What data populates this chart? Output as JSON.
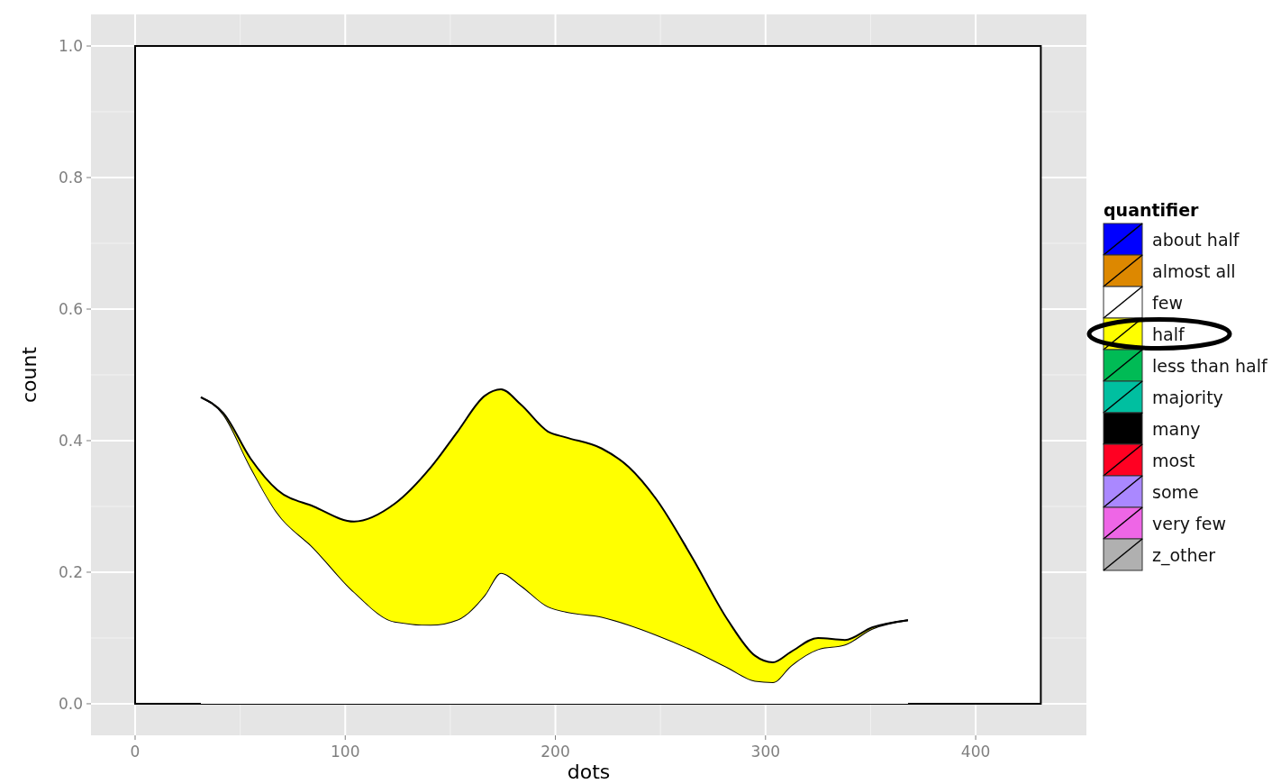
{
  "chart_data": {
    "type": "area",
    "stacked": true,
    "xlabel": "dots",
    "ylabel": "count",
    "legend_title": "quantifier",
    "legend": "right",
    "grid": true,
    "xlim": [
      -21,
      452.7
    ],
    "ylim": [
      -0.048,
      1.048
    ],
    "xticks": [
      0,
      100,
      200,
      300,
      400
    ],
    "yticks": [
      {
        "value": 0,
        "label": "0.0"
      },
      {
        "value": 0.2,
        "label": "0.2"
      },
      {
        "value": 0.4,
        "label": "0.4"
      },
      {
        "value": 0.6,
        "label": "0.6"
      },
      {
        "value": 0.8,
        "label": "0.8"
      },
      {
        "value": 1,
        "label": "1.0"
      }
    ],
    "bands": [
      {
        "axis": "x",
        "from": 0,
        "to": 431,
        "color": "#ffffff"
      }
    ],
    "x": [
      31.3,
      42.0,
      54.9,
      67.7,
      84.9,
      104.2,
      123.5,
      140.6,
      153.5,
      166.3,
      174.1,
      183.5,
      196.4,
      205,
      222.1,
      234.9,
      247.8,
      265,
      282.1,
      295,
      303.5,
      312.1,
      325,
      337.8,
      350.7,
      367.8
    ],
    "series": [
      {
        "name": "about half",
        "color": "#0000ff",
        "values": [
          null,
          null,
          null,
          null,
          null,
          null,
          null,
          null,
          null,
          null,
          null,
          null,
          null,
          null,
          null,
          null,
          null,
          null,
          null,
          null,
          null,
          null,
          null,
          null,
          null,
          null
        ]
      },
      {
        "name": "almost all",
        "color": "#dd8800",
        "values": [
          null,
          null,
          null,
          null,
          null,
          null,
          null,
          null,
          null,
          null,
          null,
          null,
          null,
          null,
          null,
          null,
          null,
          null,
          null,
          null,
          null,
          null,
          null,
          null,
          null,
          null
        ]
      },
      {
        "name": "few",
        "color": "#ffffff",
        "values": [
          0.466,
          0.44,
          0.36,
          0.29,
          0.237,
          0.17,
          0.125,
          0.12,
          0.128,
          0.165,
          0.199,
          0.18,
          0.148,
          0.14,
          0.132,
          0.12,
          0.105,
          0.082,
          0.055,
          0.035,
          0.033,
          0.058,
          0.083,
          0.09,
          0.114,
          0.127
        ]
      },
      {
        "name": "half",
        "color": "#ffff00",
        "values": [
          0,
          0.002,
          0.013,
          0.035,
          0.063,
          0.107,
          0.179,
          0.239,
          0.286,
          0.303,
          0.279,
          0.275,
          0.266,
          0.265,
          0.256,
          0.24,
          0.207,
          0.141,
          0.072,
          0.038,
          0.03,
          0.021,
          0.017,
          0.007,
          0.002,
          0
        ]
      },
      {
        "name": "less than half",
        "color": "#00bb55",
        "values": [
          null,
          null,
          null,
          null,
          null,
          null,
          null,
          null,
          null,
          null,
          null,
          null,
          null,
          null,
          null,
          null,
          null,
          null,
          null,
          null,
          null,
          null,
          null,
          null,
          null,
          null
        ]
      },
      {
        "name": "majority",
        "color": "#00bfa0",
        "values": [
          null,
          null,
          null,
          null,
          null,
          null,
          null,
          null,
          null,
          null,
          null,
          null,
          null,
          null,
          null,
          null,
          null,
          null,
          null,
          null,
          null,
          null,
          null,
          null,
          null,
          null
        ]
      },
      {
        "name": "many",
        "color": "#000000",
        "values": [
          null,
          null,
          null,
          null,
          null,
          null,
          null,
          null,
          null,
          null,
          null,
          null,
          null,
          null,
          null,
          null,
          null,
          null,
          null,
          null,
          null,
          null,
          null,
          null,
          null,
          null
        ]
      },
      {
        "name": "most",
        "color": "#ff0022",
        "values": [
          null,
          null,
          null,
          null,
          null,
          null,
          null,
          null,
          null,
          null,
          null,
          null,
          null,
          null,
          null,
          null,
          null,
          null,
          null,
          null,
          null,
          null,
          null,
          null,
          null,
          null
        ]
      },
      {
        "name": "some",
        "color": "#aa88ff",
        "values": [
          null,
          null,
          null,
          null,
          null,
          null,
          null,
          null,
          null,
          null,
          null,
          null,
          null,
          null,
          null,
          null,
          null,
          null,
          null,
          null,
          null,
          null,
          null,
          null,
          null,
          null
        ]
      },
      {
        "name": "very few",
        "color": "#ee66e6",
        "values": [
          null,
          null,
          null,
          null,
          null,
          null,
          null,
          null,
          null,
          null,
          null,
          null,
          null,
          null,
          null,
          null,
          null,
          null,
          null,
          null,
          null,
          null,
          null,
          null,
          null,
          null
        ]
      },
      {
        "name": "z_other",
        "color": "#b0b0b0",
        "values": [
          null,
          null,
          null,
          null,
          null,
          null,
          null,
          null,
          null,
          null,
          null,
          null,
          null,
          null,
          null,
          null,
          null,
          null,
          null,
          null,
          null,
          null,
          null,
          null,
          null,
          null
        ]
      }
    ]
  }
}
